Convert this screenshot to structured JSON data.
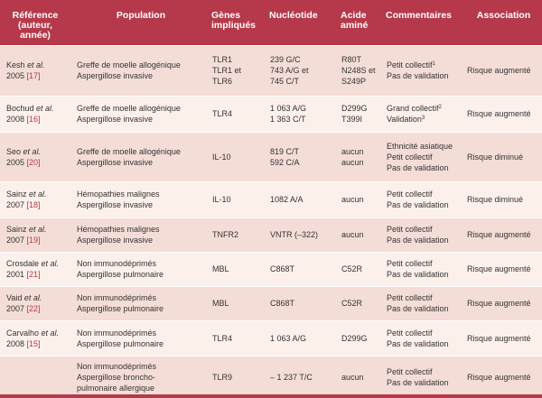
{
  "headers": [
    [
      "Référence",
      "(auteur,",
      "année)"
    ],
    [
      "Population"
    ],
    [
      "Gènes",
      "impliqués"
    ],
    [
      "Nucléotide"
    ],
    [
      "Acide",
      "aminé"
    ],
    [
      "Commentaires"
    ],
    [
      "Association"
    ]
  ],
  "rows": [
    {
      "ref": {
        "author": "Kesh",
        "etal": " et al.",
        "year": "2005 ",
        "num": "[17]"
      },
      "population": [
        "Greffe de moelle allogénique",
        "Aspergillose invasive"
      ],
      "genes": [
        "TLR1",
        "TLR1 et",
        "TLR6"
      ],
      "nucleotide": [
        "239 G/C",
        "743 A/G et",
        "745 C/T"
      ],
      "acide": [
        "R80T",
        "N248S et",
        "S249P"
      ],
      "comments": [
        {
          "text": "Petit collectif",
          "sup": "1"
        },
        {
          "text": "Pas de validation",
          "sup": ""
        }
      ],
      "association": "Risque augmenté",
      "height": 56
    },
    {
      "ref": {
        "author": "Bochud",
        "etal": " et al.",
        "year": "2008 ",
        "num": "[16]"
      },
      "population": [
        "Greffe de moelle allogénique",
        "Aspergillose invasive"
      ],
      "genes": [
        "TLR4"
      ],
      "nucleotide": [
        "1 063 A/G",
        "1 363 C/T"
      ],
      "acide": [
        "D299G",
        "T399I"
      ],
      "comments": [
        {
          "text": "Grand collectif",
          "sup": "2"
        },
        {
          "text": "Validation",
          "sup": "3"
        }
      ],
      "association": "Risque augmenté",
      "height": 40
    },
    {
      "ref": {
        "author": "Seo",
        "etal": " et al.",
        "year": "2005 ",
        "num": "[20]"
      },
      "population": [
        "Greffe de moelle allogénique",
        "Aspergillose invasive"
      ],
      "genes": [
        "IL-10"
      ],
      "nucleotide": [
        "819 C/T",
        "592 C/A"
      ],
      "acide": [
        "aucun",
        "aucun"
      ],
      "comments": [
        {
          "text": "Ethnicité asiatique",
          "sup": ""
        },
        {
          "text": "Petit collectif",
          "sup": ""
        },
        {
          "text": "Pas de validation",
          "sup": ""
        }
      ],
      "association": "Risque diminué",
      "height": 55
    },
    {
      "ref": {
        "author": "Sainz",
        "etal": " et al.",
        "year": "2007 ",
        "num": "[18]"
      },
      "population": [
        "Hémopathies malignes",
        "Aspergillose invasive"
      ],
      "genes": [
        "IL-10"
      ],
      "nucleotide": [
        "1082 A/A"
      ],
      "acide": [
        "aucun"
      ],
      "comments": [
        {
          "text": "Petit collectif",
          "sup": ""
        },
        {
          "text": "Pas de validation",
          "sup": ""
        }
      ],
      "association": "Risque diminué",
      "height": 40
    },
    {
      "ref": {
        "author": "Sainz",
        "etal": " et al.",
        "year": "2007 ",
        "num": "[19]"
      },
      "population": [
        "Hémopathies malignes",
        "Aspergillose invasive"
      ],
      "genes": [
        "TNFR2"
      ],
      "nucleotide": [
        "VNTR (–322)"
      ],
      "acide": [
        "aucun"
      ],
      "comments": [
        {
          "text": "Petit collectif",
          "sup": ""
        },
        {
          "text": "Pas de validation",
          "sup": ""
        }
      ],
      "association": "Risque augmenté",
      "height": 38
    },
    {
      "ref": {
        "author": "Crosdale",
        "etal": " et al.",
        "year": "2001 ",
        "num": "[21]"
      },
      "population": [
        "Non immunodéprimés",
        "Aspergillose pulmonaire"
      ],
      "genes": [
        "MBL"
      ],
      "nucleotide": [
        "C868T"
      ],
      "acide": [
        "C52R"
      ],
      "comments": [
        {
          "text": "Petit collectif",
          "sup": ""
        },
        {
          "text": "Pas de validation",
          "sup": ""
        }
      ],
      "association": "Risque augmenté",
      "height": 38
    },
    {
      "ref": {
        "author": "Vaid",
        "etal": " et al.",
        "year": "2007 ",
        "num": "[22]"
      },
      "population": [
        "Non immunodéprimés",
        "Aspergillose pulmonaire"
      ],
      "genes": [
        "MBL"
      ],
      "nucleotide": [
        "C868T"
      ],
      "acide": [
        "C52R"
      ],
      "comments": [
        {
          "text": "Petit collectif",
          "sup": ""
        },
        {
          "text": "Pas de validation",
          "sup": ""
        }
      ],
      "association": "Risque augmenté",
      "height": 38
    },
    {
      "ref": {
        "author": "Carvalho",
        "etal": " et al.",
        "year": "2008 ",
        "num": "[15]"
      },
      "population": [
        "Non immunodéprimés",
        "Aspergillose pulmonaire"
      ],
      "genes": [
        "TLR4"
      ],
      "nucleotide": [
        "1 063 A/G"
      ],
      "acide": [
        "D299G"
      ],
      "comments": [
        {
          "text": "Petit collectif",
          "sup": ""
        },
        {
          "text": "Pas de validation",
          "sup": ""
        }
      ],
      "association": "Risque augmenté",
      "height": 39
    },
    {
      "ref": {
        "author": "",
        "etal": "",
        "year": "",
        "num": ""
      },
      "population": [
        "Non immunodéprimés",
        "Aspergillose broncho-",
        "pulmonaire allergique"
      ],
      "genes": [
        "TLR9"
      ],
      "nucleotide": [
        "– 1 237 T/C"
      ],
      "acide": [
        "aucun"
      ],
      "comments": [
        {
          "text": "Petit collectif",
          "sup": ""
        },
        {
          "text": "Pas de validation",
          "sup": ""
        }
      ],
      "association": "Risque augmenté",
      "height": 47
    }
  ]
}
